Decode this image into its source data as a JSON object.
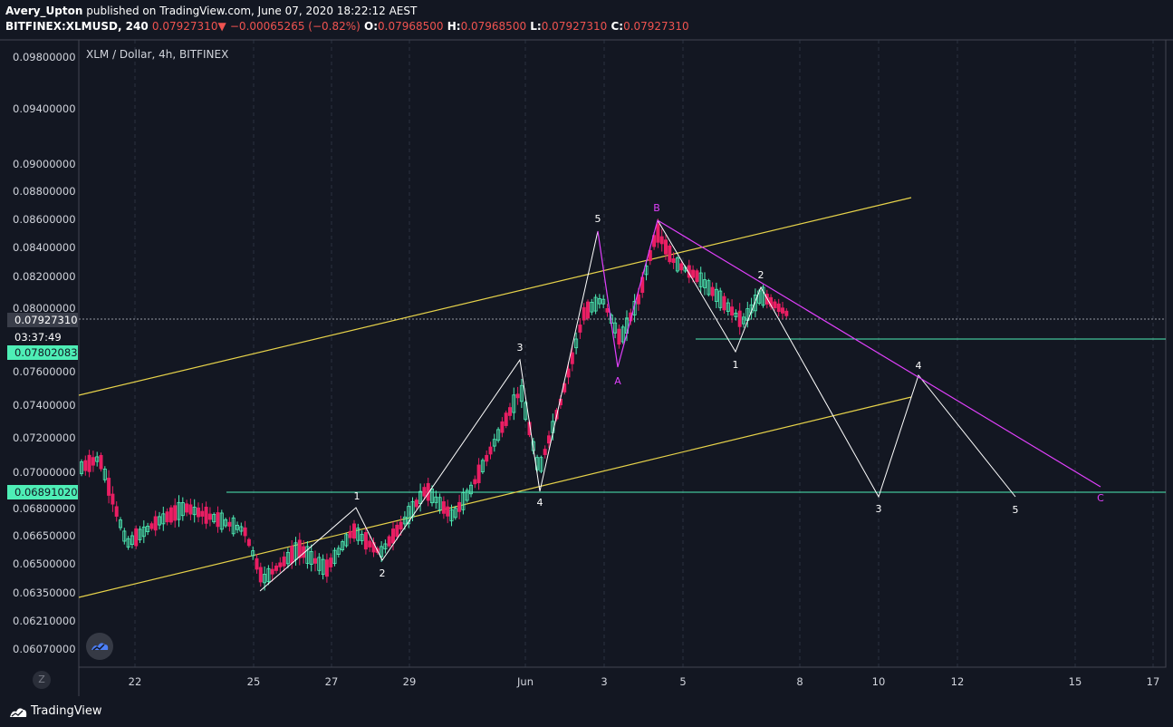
{
  "header": {
    "author": "Avery_Upton",
    "published_text": "published on TradingView.com, June 07, 2020 18:22:12 AEST",
    "symbol": "BITFINEX:XLMUSD, 240",
    "last": "0.07927310",
    "change": "−0.00065265 (−0.82%)",
    "o_label": "O:",
    "o": "0.07968500",
    "h_label": "H:",
    "h": "0.07968500",
    "l_label": "L:",
    "l": "0.07927310",
    "c_label": "C:",
    "c": "0.07927310"
  },
  "pane_title": "XLM / Dollar, 4h, BITFINEX",
  "price_axis": {
    "ticks": [
      "0.09800000",
      "0.09400000",
      "0.09000000",
      "0.08800000",
      "0.08600000",
      "0.08400000",
      "0.08200000",
      "0.08000000",
      "0.07600000",
      "0.07400000",
      "0.07200000",
      "0.07000000",
      "0.06800000",
      "0.06650000",
      "0.06500000",
      "0.06350000",
      "0.06210000",
      "0.06070000"
    ],
    "tags": [
      {
        "text": "0.07927310",
        "kind": "price"
      },
      {
        "text": "03:37:49",
        "kind": "countdown"
      },
      {
        "text": "0.07802083",
        "kind": "teal"
      },
      {
        "text": "0.06891020",
        "kind": "teal"
      }
    ]
  },
  "time_axis": {
    "ticks": [
      "22",
      "25",
      "27",
      "29",
      "Jun",
      "3",
      "5",
      "8",
      "10",
      "12",
      "15",
      "17"
    ]
  },
  "zoom_button": "Z",
  "footer_brand": "TradingView",
  "waves": [
    "1",
    "2",
    "3",
    "4",
    "5",
    "A",
    "B",
    "1",
    "2",
    "3",
    "4",
    "5",
    "C"
  ],
  "colors": {
    "background": "#131722",
    "up": "#4eeeb6",
    "down": "#e91e63",
    "white_path": "#ffffff",
    "magenta_path": "#e040fb",
    "channel": "#e6d24a",
    "teal_line": "#4eeeb6",
    "grid": "#363c4e"
  }
}
